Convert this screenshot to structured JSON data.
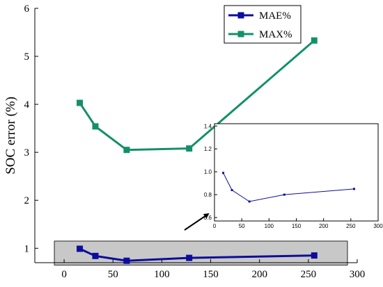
{
  "chart_data": [
    {
      "type": "line",
      "ylabel": "SOC error (%)",
      "xlabel": "",
      "xlim": [
        -30,
        300
      ],
      "ylim": [
        0.7,
        6
      ],
      "xticks": [
        0,
        50,
        100,
        150,
        200,
        250,
        300
      ],
      "xtick_labels": [
        "0",
        "50",
        "100",
        "150",
        "200",
        "250",
        "300"
      ],
      "yticks": [
        1,
        2,
        3,
        4,
        5,
        6
      ],
      "ytick_labels": [
        "1",
        "2",
        "3",
        "4",
        "5",
        "6"
      ],
      "grid": false,
      "legend_position": "top-right",
      "series": [
        {
          "name": "MAE%",
          "color": "#0d0d9c",
          "marker": "square",
          "x": [
            16,
            32,
            64,
            128,
            256
          ],
          "y": [
            0.99,
            0.84,
            0.74,
            0.8,
            0.85
          ]
        },
        {
          "name": "MAX%",
          "color": "#13906a",
          "marker": "square",
          "x": [
            16,
            32,
            64,
            128,
            256
          ],
          "y": [
            4.03,
            3.54,
            3.05,
            3.08,
            5.33
          ]
        }
      ],
      "highlight_region": {
        "x": [
          -10,
          290
        ],
        "y": [
          0.65,
          1.15
        ],
        "color": "#c8c8c8"
      }
    },
    {
      "type": "line",
      "title": "",
      "xlim": [
        0,
        300
      ],
      "ylim": [
        0.57,
        1.42
      ],
      "xticks": [
        0,
        50,
        100,
        150,
        200,
        250,
        300
      ],
      "xtick_labels": [
        "0",
        "50",
        "100",
        "150",
        "200",
        "250",
        "300"
      ],
      "yticks": [
        0.6,
        0.8,
        1.0,
        1.2,
        1.4
      ],
      "ytick_labels": [
        "0.6",
        "0.8",
        "1.0",
        "1.2",
        "1.4"
      ],
      "grid": false,
      "series": [
        {
          "name": "MAE%",
          "color": "#0d0d9c",
          "marker": "square",
          "x": [
            16,
            32,
            64,
            128,
            256
          ],
          "y": [
            0.99,
            0.84,
            0.74,
            0.8,
            0.85
          ]
        }
      ]
    }
  ]
}
